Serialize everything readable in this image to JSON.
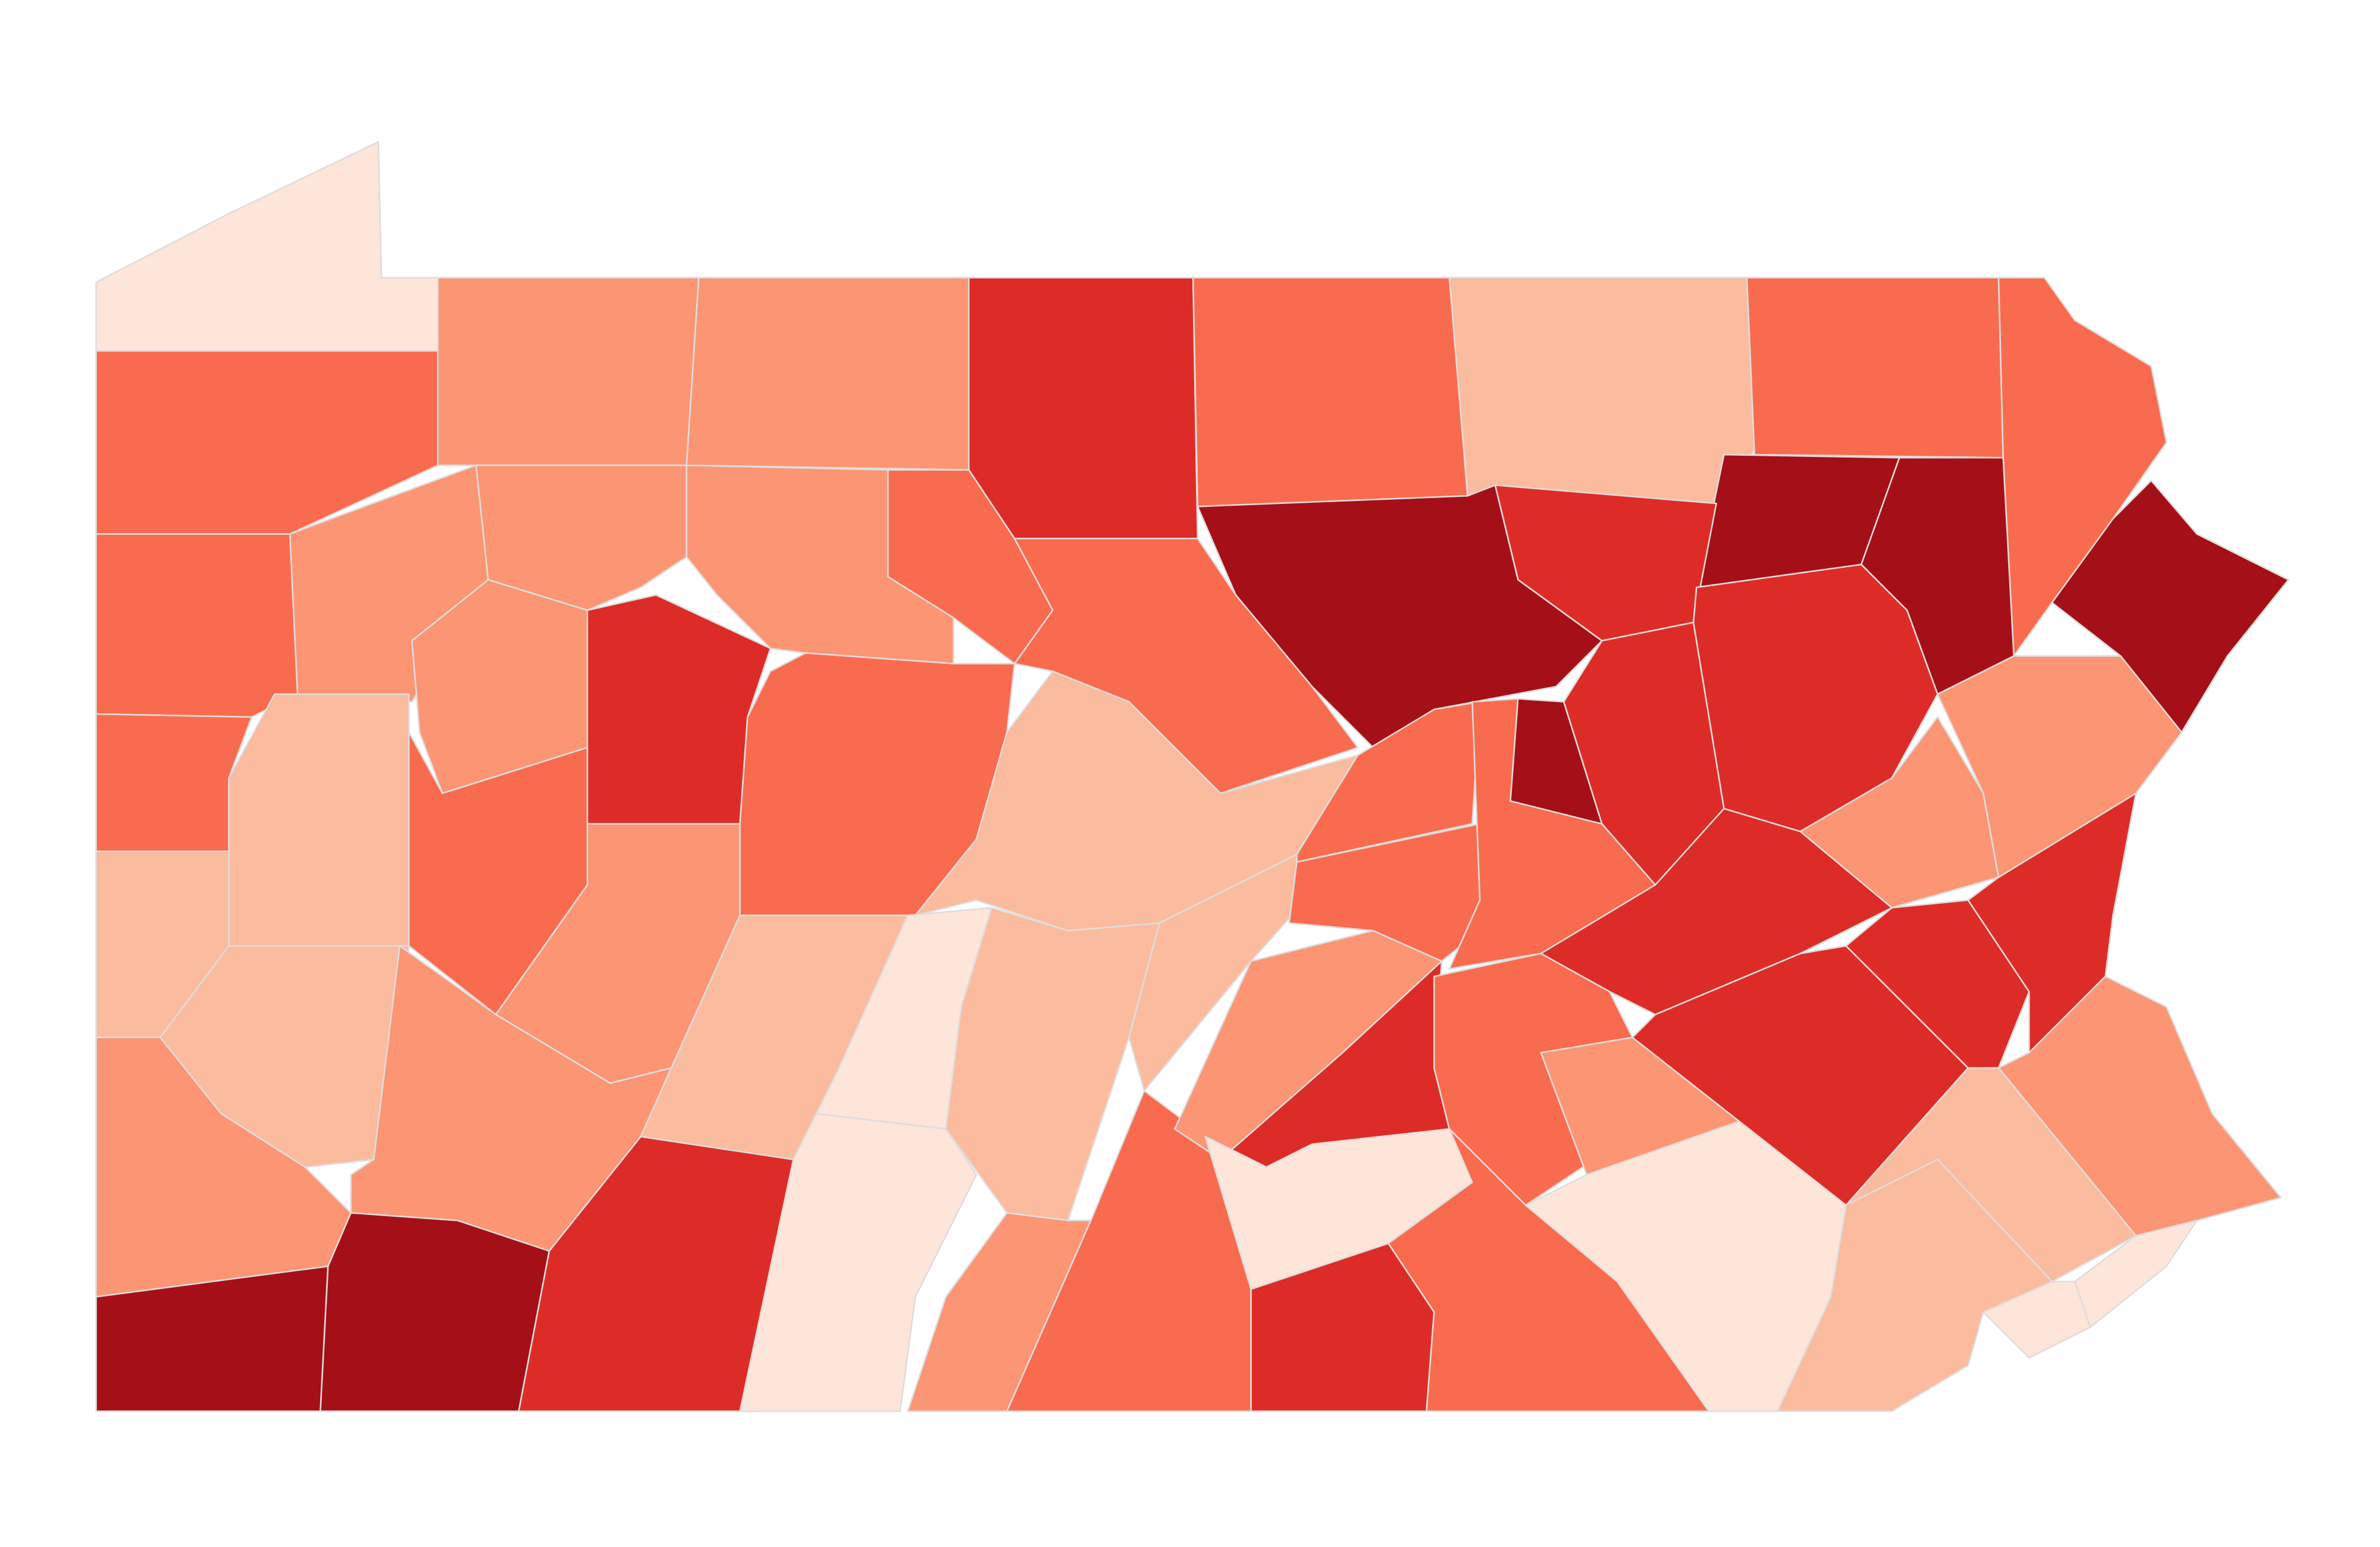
{
  "map": {
    "type": "choropleth",
    "regions": [
      {
        "fill": "#fde5da"
      },
      {
        "fill": "#f96b4e"
      },
      {
        "fill": "#fb9574"
      },
      {
        "fill": "#fb9574"
      },
      {
        "fill": "#dd2c27"
      },
      {
        "fill": "#f96b4e"
      },
      {
        "fill": "#fbbb9f"
      },
      {
        "fill": "#f96b4e"
      },
      {
        "fill": "#f96b4e"
      },
      {
        "fill": "#a50f17"
      },
      {
        "fill": "#a50f17"
      },
      {
        "fill": "#a50f17"
      },
      {
        "fill": "#dd2c27"
      },
      {
        "fill": "#a50f17"
      },
      {
        "fill": "#f96b4e"
      },
      {
        "fill": "#f96b4e"
      },
      {
        "fill": "#fb9574"
      },
      {
        "fill": "#fb9574"
      },
      {
        "fill": "#fb9574"
      },
      {
        "fill": "#f96b4e"
      },
      {
        "fill": "#f96b4e"
      },
      {
        "fill": "#fbbb9f"
      },
      {
        "fill": "#fbbb9f"
      },
      {
        "fill": "#fb9574"
      },
      {
        "fill": "#dd2c27"
      },
      {
        "fill": "#f96b4e"
      },
      {
        "fill": "#fb9574"
      },
      {
        "fill": "#f96b4e"
      },
      {
        "fill": "#fbbb9f"
      },
      {
        "fill": "#fbbb9f"
      },
      {
        "fill": "#fb9574"
      },
      {
        "fill": "#fb9574"
      },
      {
        "fill": "#a50f17"
      },
      {
        "fill": "#a50f17"
      },
      {
        "fill": "#dd2c27"
      },
      {
        "fill": "#fbbb9f"
      },
      {
        "fill": "#fde5da"
      },
      {
        "fill": "#fde5da"
      },
      {
        "fill": "#fbbb9f"
      },
      {
        "fill": "#fb9574"
      },
      {
        "fill": "#fbbb9f"
      },
      {
        "fill": "#f96b4e"
      },
      {
        "fill": "#fb9574"
      },
      {
        "fill": "#dd2c27"
      },
      {
        "fill": "#fde5da"
      },
      {
        "fill": "#dd2c27"
      },
      {
        "fill": "#f96b4e"
      },
      {
        "fill": "#f96b4e"
      },
      {
        "fill": "#f96b4e"
      },
      {
        "fill": "#a50f17"
      },
      {
        "fill": "#dd2c27"
      },
      {
        "fill": "#dd2c27"
      },
      {
        "fill": "#fb9574"
      },
      {
        "fill": "#fb9574"
      },
      {
        "fill": "#dd2c27"
      },
      {
        "fill": "#f96b4e"
      },
      {
        "fill": "#fb9574"
      },
      {
        "fill": "#dd2c27"
      },
      {
        "fill": "#dd2c27"
      },
      {
        "fill": "#dd2c27"
      },
      {
        "fill": "#fb9574"
      },
      {
        "fill": "#fbbb9f"
      },
      {
        "fill": "#fde5da"
      },
      {
        "fill": "#fde5da"
      },
      {
        "fill": "#fbbb9f"
      },
      {
        "fill": "#fde5da"
      },
      {
        "fill": "#f96b4e"
      }
    ]
  }
}
